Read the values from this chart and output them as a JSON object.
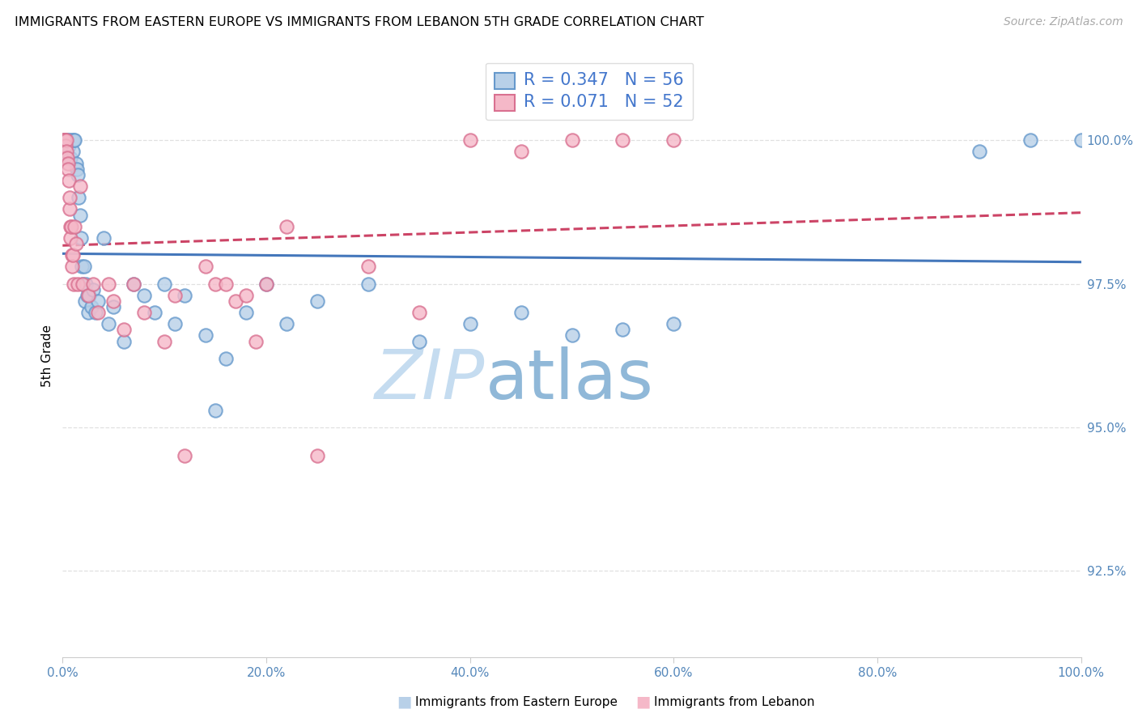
{
  "title": "IMMIGRANTS FROM EASTERN EUROPE VS IMMIGRANTS FROM LEBANON 5TH GRADE CORRELATION CHART",
  "source": "Source: ZipAtlas.com",
  "ylabel": "5th Grade",
  "y_ticks": [
    92.5,
    95.0,
    97.5,
    100.0
  ],
  "y_tick_labels": [
    "92.5%",
    "95.0%",
    "97.5%",
    "100.0%"
  ],
  "x_range": [
    0.0,
    100.0
  ],
  "y_range": [
    91.0,
    101.5
  ],
  "R_blue": "0.347",
  "N_blue": "56",
  "R_pink": "0.071",
  "N_pink": "52",
  "legend_label_blue": "Immigrants from Eastern Europe",
  "legend_label_pink": "Immigrants from Lebanon",
  "blue_fill": "#b8d0e8",
  "pink_fill": "#f5b8c8",
  "blue_edge": "#6699cc",
  "pink_edge": "#d97090",
  "blue_line": "#4477bb",
  "pink_line": "#cc4466",
  "text_color": "#4477cc",
  "grid_color": "#e0e0e0",
  "grid_style": "--",
  "spine_color": "#cccccc",
  "tick_color": "#5588bb",
  "blue_x": [
    0.2,
    0.3,
    0.4,
    0.5,
    0.6,
    0.7,
    0.8,
    0.9,
    1.0,
    1.1,
    1.2,
    1.3,
    1.4,
    1.5,
    1.6,
    1.7,
    1.8,
    1.9,
    2.0,
    2.1,
    2.2,
    2.3,
    2.4,
    2.5,
    2.6,
    2.8,
    3.0,
    3.2,
    3.5,
    4.0,
    4.5,
    5.0,
    6.0,
    7.0,
    8.0,
    9.0,
    10.0,
    11.0,
    12.0,
    14.0,
    15.0,
    16.0,
    18.0,
    20.0,
    22.0,
    25.0,
    30.0,
    35.0,
    40.0,
    45.0,
    50.0,
    55.0,
    60.0,
    90.0,
    95.0,
    100.0
  ],
  "blue_y": [
    100.0,
    99.8,
    100.0,
    100.0,
    99.9,
    100.0,
    99.7,
    100.0,
    99.8,
    100.0,
    100.0,
    99.6,
    99.5,
    99.4,
    99.0,
    98.7,
    98.3,
    97.8,
    97.5,
    97.8,
    97.2,
    97.5,
    97.3,
    97.0,
    97.3,
    97.1,
    97.4,
    97.0,
    97.2,
    98.3,
    96.8,
    97.1,
    96.5,
    97.5,
    97.3,
    97.0,
    97.5,
    96.8,
    97.3,
    96.6,
    95.3,
    96.2,
    97.0,
    97.5,
    96.8,
    97.2,
    97.5,
    96.5,
    96.8,
    97.0,
    96.6,
    96.7,
    96.8,
    99.8,
    100.0,
    100.0
  ],
  "pink_x": [
    0.1,
    0.15,
    0.2,
    0.25,
    0.3,
    0.35,
    0.4,
    0.45,
    0.5,
    0.55,
    0.6,
    0.65,
    0.7,
    0.75,
    0.8,
    0.85,
    0.9,
    0.95,
    1.0,
    1.1,
    1.2,
    1.3,
    1.5,
    1.7,
    2.0,
    2.5,
    3.0,
    3.5,
    4.5,
    5.0,
    6.0,
    7.0,
    8.0,
    10.0,
    11.0,
    12.0,
    14.0,
    15.0,
    16.0,
    17.0,
    18.0,
    19.0,
    20.0,
    22.0,
    25.0,
    30.0,
    35.0,
    40.0,
    45.0,
    50.0,
    55.0,
    60.0
  ],
  "pink_y": [
    100.0,
    100.0,
    100.0,
    100.0,
    99.9,
    100.0,
    99.8,
    99.7,
    99.6,
    99.5,
    99.3,
    98.8,
    99.0,
    98.5,
    98.3,
    98.5,
    98.0,
    97.8,
    98.0,
    97.5,
    98.5,
    98.2,
    97.5,
    99.2,
    97.5,
    97.3,
    97.5,
    97.0,
    97.5,
    97.2,
    96.7,
    97.5,
    97.0,
    96.5,
    97.3,
    94.5,
    97.8,
    97.5,
    97.5,
    97.2,
    97.3,
    96.5,
    97.5,
    98.5,
    94.5,
    97.8,
    97.0,
    100.0,
    99.8,
    100.0,
    100.0,
    100.0
  ]
}
